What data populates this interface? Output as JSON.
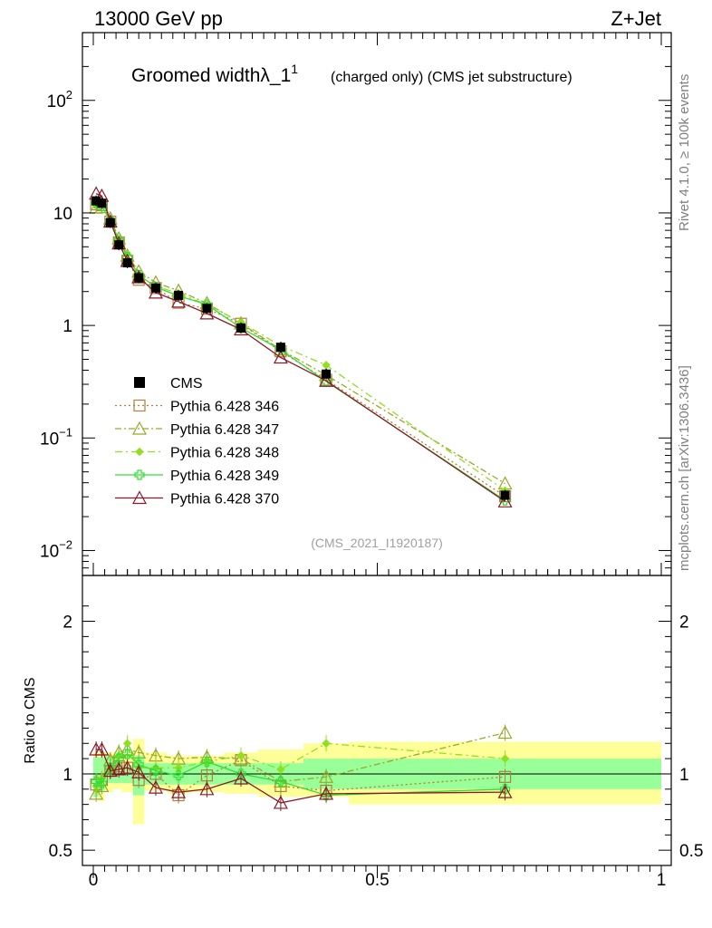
{
  "header": {
    "left": "13000 GeV pp",
    "right": "Z+Jet"
  },
  "side_text": {
    "rivet": "Rivet 4.1.0, ≥ 100k events",
    "mcplots": "mcplots.cern.ch [arXiv:1306.3436]"
  },
  "chart_data": {
    "type": "line",
    "title": "Groomed widthλ_1",
    "title_superscript": "1",
    "subtitle": "(charged only) (CMS jet substructure)",
    "watermark": "(CMS_2021_I1920187)",
    "xlabel": "",
    "ylabel_ratio": "Ratio to CMS",
    "xlim": [
      0,
      1
    ],
    "ylim": [
      0.006,
      400
    ],
    "yscale": "log",
    "ratio_ylim": [
      0.4,
      2.3
    ],
    "main_y_ticks": [
      {
        "value": 100,
        "base": "10",
        "exp": "2"
      },
      {
        "value": 10,
        "base": "10",
        "exp": ""
      },
      {
        "value": 1,
        "base": "1",
        "exp": ""
      },
      {
        "value": 0.1,
        "base": "10",
        "exp": "−1"
      },
      {
        "value": 0.01,
        "base": "10",
        "exp": "−2"
      }
    ],
    "ratio_y_ticks": [
      {
        "value": 2,
        "label": "2"
      },
      {
        "value": 1,
        "label": "1"
      },
      {
        "value": 0.5,
        "label": "0.5"
      }
    ],
    "x_ticks": [
      {
        "value": 0,
        "label": "0"
      },
      {
        "value": 0.5,
        "label": "0.5"
      },
      {
        "value": 1,
        "label": "1"
      }
    ],
    "x": [
      0.005,
      0.015,
      0.03,
      0.045,
      0.06,
      0.08,
      0.11,
      0.15,
      0.2,
      0.26,
      0.33,
      0.41,
      0.725
    ],
    "data": {
      "name": "CMS",
      "values": [
        12.8,
        12.2,
        8.2,
        5.2,
        3.6,
        2.65,
        2.15,
        1.85,
        1.42,
        0.95,
        0.64,
        0.37,
        0.031
      ],
      "band_edges": [
        0,
        0.01,
        0.02,
        0.035,
        0.05,
        0.07,
        0.09,
        0.13,
        0.17,
        0.23,
        0.29,
        0.37,
        0.45,
        1.0
      ],
      "band_stat_lo": [
        0.85,
        0.89,
        0.94,
        0.94,
        0.94,
        0.86,
        0.93,
        0.93,
        0.93,
        0.93,
        0.93,
        0.9,
        0.9
      ],
      "band_stat_hi": [
        1.11,
        1.11,
        1.12,
        1.08,
        1.06,
        1.12,
        1.07,
        1.07,
        1.07,
        1.07,
        1.07,
        1.1,
        1.1
      ],
      "band_tot_lo": [
        0.88,
        0.82,
        0.88,
        0.9,
        0.88,
        0.67,
        0.89,
        0.87,
        0.88,
        0.87,
        0.85,
        0.85,
        0.8
      ],
      "band_tot_hi": [
        1.14,
        1.15,
        1.14,
        1.14,
        1.14,
        1.23,
        1.14,
        1.12,
        1.12,
        1.14,
        1.16,
        1.2,
        1.21
      ]
    },
    "series": [
      {
        "name": "Pythia 6.428 346",
        "color": "#b07f3a",
        "dash": "2,3",
        "marker": "square",
        "ratio": [
          0.93,
          0.96,
          1.02,
          1.05,
          1.04,
          0.96,
          1.0,
          0.86,
          0.99,
          1.09,
          0.92,
          0.89,
          0.98
        ]
      },
      {
        "name": "Pythia 6.428 347",
        "color": "#9aa82a",
        "dash": "7,3,2,3",
        "marker": "triangle",
        "ratio": [
          0.87,
          0.92,
          1.09,
          1.14,
          1.16,
          1.14,
          1.12,
          1.1,
          1.11,
          1.1,
          0.95,
          0.98,
          1.27
        ]
      },
      {
        "name": "Pythia 6.428 348",
        "color": "#90e020",
        "dash": "8,4,2,4",
        "marker": "diamond",
        "ratio": [
          0.92,
          0.97,
          1.02,
          1.12,
          1.2,
          1.04,
          1.04,
          1.04,
          1.08,
          1.12,
          1.03,
          1.2,
          1.1
        ]
      },
      {
        "name": "Pythia 6.428 349",
        "color": "#33dd33",
        "dash": "",
        "marker": "cross",
        "ratio": [
          0.95,
          0.94,
          1.04,
          1.1,
          1.13,
          1.06,
          1.02,
          0.99,
          1.08,
          1.0,
          0.95,
          0.86,
          0.9
        ]
      },
      {
        "name": "Pythia 6.428 370",
        "color": "#8b1a2a",
        "dash": "",
        "marker": "triangle",
        "ratio": [
          1.16,
          1.16,
          1.02,
          1.03,
          1.04,
          1.01,
          0.91,
          0.88,
          0.9,
          0.97,
          0.81,
          0.87,
          0.88
        ]
      }
    ]
  }
}
